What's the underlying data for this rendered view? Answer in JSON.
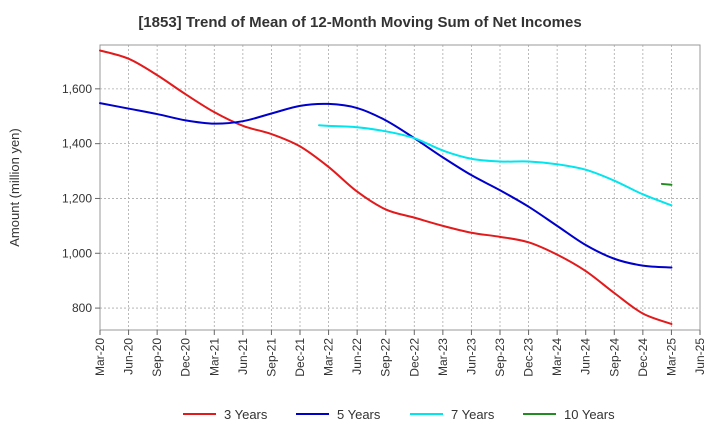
{
  "chart_data": {
    "type": "line",
    "title": "[1853]  Trend of Mean of 12-Month Moving Sum of Net Incomes",
    "xlabel": "",
    "ylabel": "Amount (million yen)",
    "ylim": [
      720,
      1760
    ],
    "yticks": [
      800,
      1000,
      1200,
      1400,
      1600
    ],
    "ytick_labels": [
      "800",
      "1,000",
      "1,200",
      "1,400",
      "1,600"
    ],
    "xticks": [
      "Mar-20",
      "Jun-20",
      "Sep-20",
      "Dec-20",
      "Mar-21",
      "Jun-21",
      "Sep-21",
      "Dec-21",
      "Mar-22",
      "Jun-22",
      "Sep-22",
      "Dec-22",
      "Mar-23",
      "Jun-23",
      "Sep-23",
      "Dec-23",
      "Mar-24",
      "Jun-24",
      "Sep-24",
      "Dec-24",
      "Mar-25",
      "Jun-25"
    ],
    "grid": true,
    "legend_position": "bottom",
    "series": [
      {
        "name": "3 Years",
        "color": "#e31a1c",
        "points": [
          [
            "Mar-20",
            1740
          ],
          [
            "Jun-20",
            1710
          ],
          [
            "Sep-20",
            1650
          ],
          [
            "Dec-20",
            1580
          ],
          [
            "Mar-21",
            1515
          ],
          [
            "Jun-21",
            1465
          ],
          [
            "Sep-21",
            1435
          ],
          [
            "Dec-21",
            1390
          ],
          [
            "Mar-22",
            1315
          ],
          [
            "Jun-22",
            1225
          ],
          [
            "Sep-22",
            1160
          ],
          [
            "Dec-22",
            1130
          ],
          [
            "Mar-23",
            1100
          ],
          [
            "Jun-23",
            1075
          ],
          [
            "Sep-23",
            1060
          ],
          [
            "Dec-23",
            1040
          ],
          [
            "Mar-24",
            995
          ],
          [
            "Jun-24",
            935
          ],
          [
            "Sep-24",
            855
          ],
          [
            "Dec-24",
            780
          ],
          [
            "Mar-25",
            742
          ]
        ]
      },
      {
        "name": "5 Years",
        "color": "#0000cc",
        "points": [
          [
            "Mar-20",
            1548
          ],
          [
            "Jun-20",
            1528
          ],
          [
            "Sep-20",
            1508
          ],
          [
            "Dec-20",
            1485
          ],
          [
            "Mar-21",
            1473
          ],
          [
            "Jun-21",
            1482
          ],
          [
            "Sep-21",
            1510
          ],
          [
            "Dec-21",
            1538
          ],
          [
            "Mar-22",
            1545
          ],
          [
            "Jun-22",
            1530
          ],
          [
            "Sep-22",
            1485
          ],
          [
            "Dec-22",
            1420
          ],
          [
            "Mar-23",
            1350
          ],
          [
            "Jun-23",
            1285
          ],
          [
            "Sep-23",
            1230
          ],
          [
            "Dec-23",
            1170
          ],
          [
            "Mar-24",
            1100
          ],
          [
            "Jun-24",
            1030
          ],
          [
            "Sep-24",
            980
          ],
          [
            "Dec-24",
            955
          ],
          [
            "Mar-25",
            948
          ]
        ]
      },
      {
        "name": "7 Years",
        "color": "#00e5ee",
        "points": [
          [
            "Feb-22",
            1467
          ],
          [
            "Mar-22",
            1465
          ],
          [
            "Jun-22",
            1460
          ],
          [
            "Sep-22",
            1445
          ],
          [
            "Dec-22",
            1420
          ],
          [
            "Mar-23",
            1375
          ],
          [
            "Jun-23",
            1345
          ],
          [
            "Sep-23",
            1335
          ],
          [
            "Dec-23",
            1335
          ],
          [
            "Mar-24",
            1325
          ],
          [
            "Jun-24",
            1305
          ],
          [
            "Sep-24",
            1265
          ],
          [
            "Dec-24",
            1215
          ],
          [
            "Mar-25",
            1175
          ]
        ]
      },
      {
        "name": "10 Years",
        "color": "#228b22",
        "points": [
          [
            "Feb-25",
            1253
          ],
          [
            "Mar-25",
            1250
          ]
        ]
      }
    ]
  }
}
